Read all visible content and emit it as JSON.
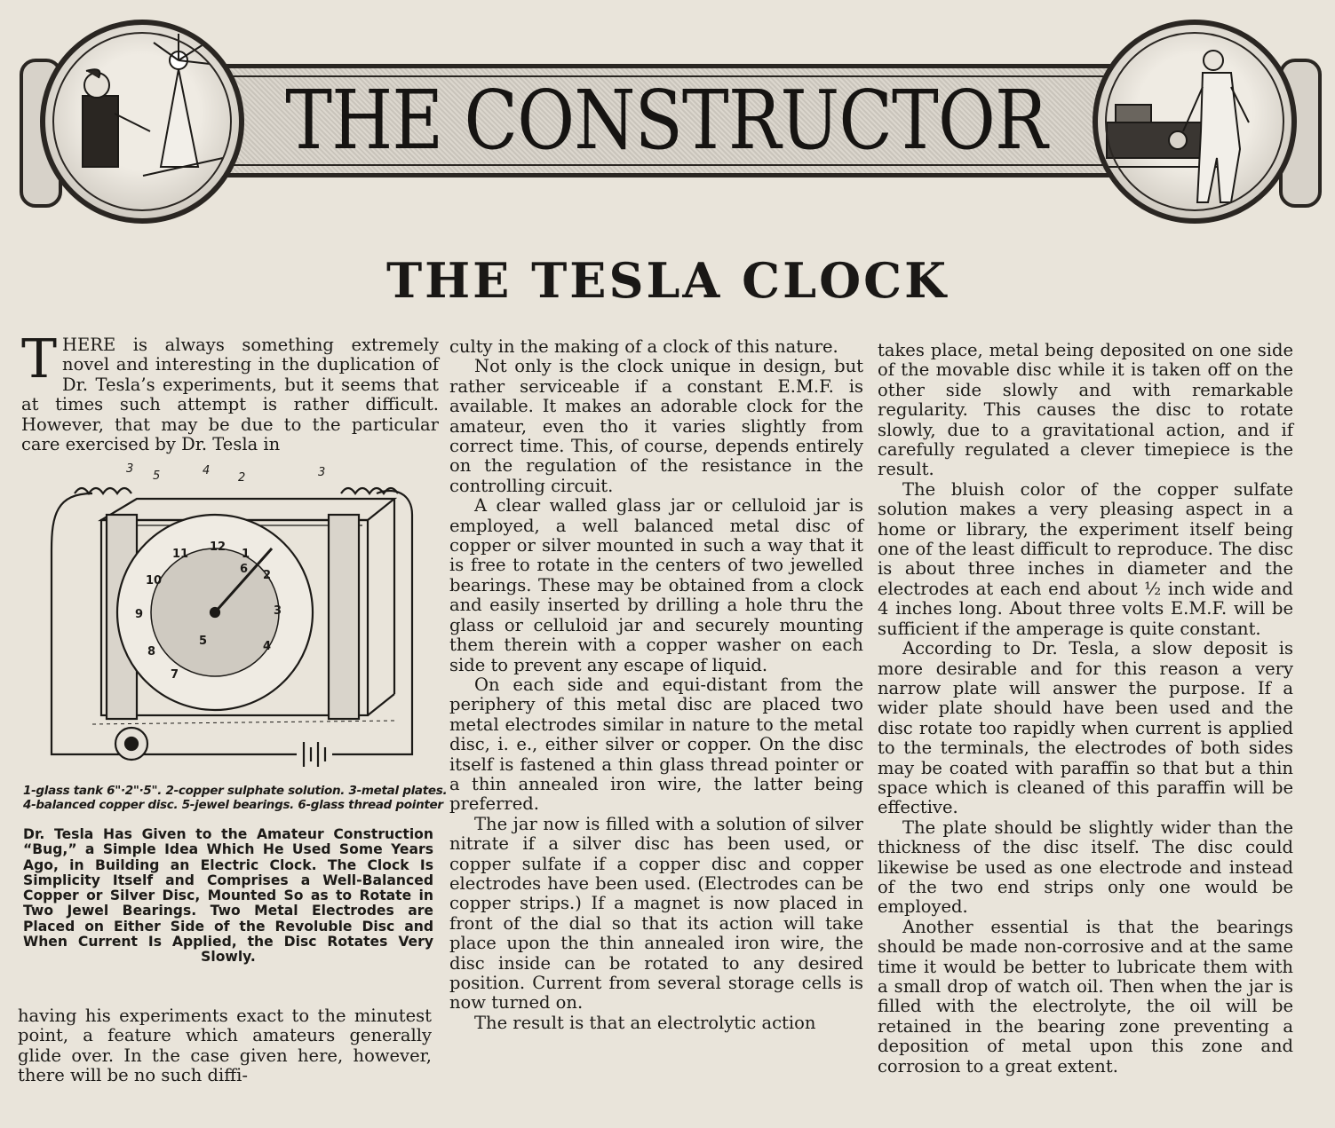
{
  "header": {
    "section_title": "THE CONSTRUCTOR"
  },
  "article": {
    "title": "THE TESLA CLOCK",
    "col1_dropcap": "T",
    "col1_top": "HERE is always something extremely novel and interesting in the duplication of Dr. Tesla’s experiments, but it seems that at times such attempt is rather difficult. However, that may be due to the particular care exercised by Dr. Tesla in",
    "col1_bottom": "having his experiments exact to the minutest point, a feature which amateurs generally glide over. In the case given here, however, there will be no such diffi-",
    "col2": [
      "culty in the making of a clock of this nature.",
      "Not only is the clock unique in design, but rather serviceable if a constant E.M.F. is available. It makes an adorable clock for the amateur, even tho it varies slightly from correct time. This, of course, depends entirely on the regulation of the resistance in the controlling circuit.",
      "A clear walled glass jar or celluloid jar is employed, a well balanced metal disc of copper or silver mounted in such a way that it is free to rotate in the centers of two jewelled bearings. These may be obtained from a clock and easily inserted by drilling a hole thru the glass or celluloid jar and securely mounting them therein with a copper washer on each side to prevent any escape of liquid.",
      "On each side and equi-distant from the periphery of this metal disc are placed two metal electrodes similar in nature to the metal disc, i. e., either silver or copper. On the disc itself is fastened a thin glass thread pointer or a thin annealed iron wire, the latter being preferred.",
      "The jar now is filled with a solution of silver nitrate if a silver disc has been used, or copper sulfate if a copper disc and copper electrodes have been used. (Electrodes can be copper strips.) If a magnet is now placed in front of the dial so that its action will take place upon the thin annealed iron wire, the disc inside can be rotated to any desired position. Current from several storage cells is now turned on.",
      "The result is that an electrolytic action"
    ],
    "col3": [
      "takes place, metal being deposited on one side of the movable disc while it is taken off on the other side slowly and with remarkable regularity. This causes the disc to rotate slowly, due to a gravitational action, and if carefully regulated a clever timepiece is the result.",
      "The bluish color of the copper sulfate solution makes a very pleasing aspect in a home or library, the experiment itself being one of the least difficult to reproduce. The disc is about three inches in diameter and the electrodes at each end about ½ inch wide and 4 inches long. About three volts E.M.F. will be sufficient if the amperage is quite constant.",
      "According to Dr. Tesla, a slow deposit is more desirable and for this reason a very narrow plate will answer the purpose. If a wider plate should have been used and the disc rotate too rapidly when current is applied to the terminals, the electrodes of both sides may be coated with paraffin so that but a thin space which is cleaned of this paraffin will be effective.",
      "The plate should be slightly wider than the thickness of the disc itself. The disc could likewise be used as one electrode and instead of the two end strips only one would be employed.",
      "Another essential is that the bearings should be made non-corrosive and at the same time it would be better to lubricate them with a small drop of watch oil. Then when the jar is filled with the electrolyte, the oil will be retained in the bearing zone preventing a deposition of metal upon this zone and corrosion to a great extent."
    ]
  },
  "figure": {
    "legend_line1": "1-glass tank 6\"·2\"·5\". 2-copper sulphate solution. 3-metal plates.",
    "legend_line2": "4-balanced copper disc. 5-jewel bearings. 6-glass thread pointer",
    "dial_numbers": [
      "12",
      "1",
      "2",
      "3",
      "4",
      "5",
      "6",
      "7",
      "8",
      "9",
      "10",
      "11"
    ],
    "callouts": [
      "3",
      "5",
      "4",
      "2",
      "3"
    ],
    "caption": "Dr. Tesla Has Given to the Amateur Construction “Bug,” a Simple Idea Which He Used Some Years Ago, in Building an Electric Clock. The Clock Is Simplicity Itself and Comprises a Well-Balanced Copper or Silver Disc, Mounted So as to Rotate in Two Jewel Bearings. Two Metal Electrodes are Placed on Either Side of the Revoluble Disc and When Current Is Applied, the Disc Rotates Very Slowly."
  }
}
